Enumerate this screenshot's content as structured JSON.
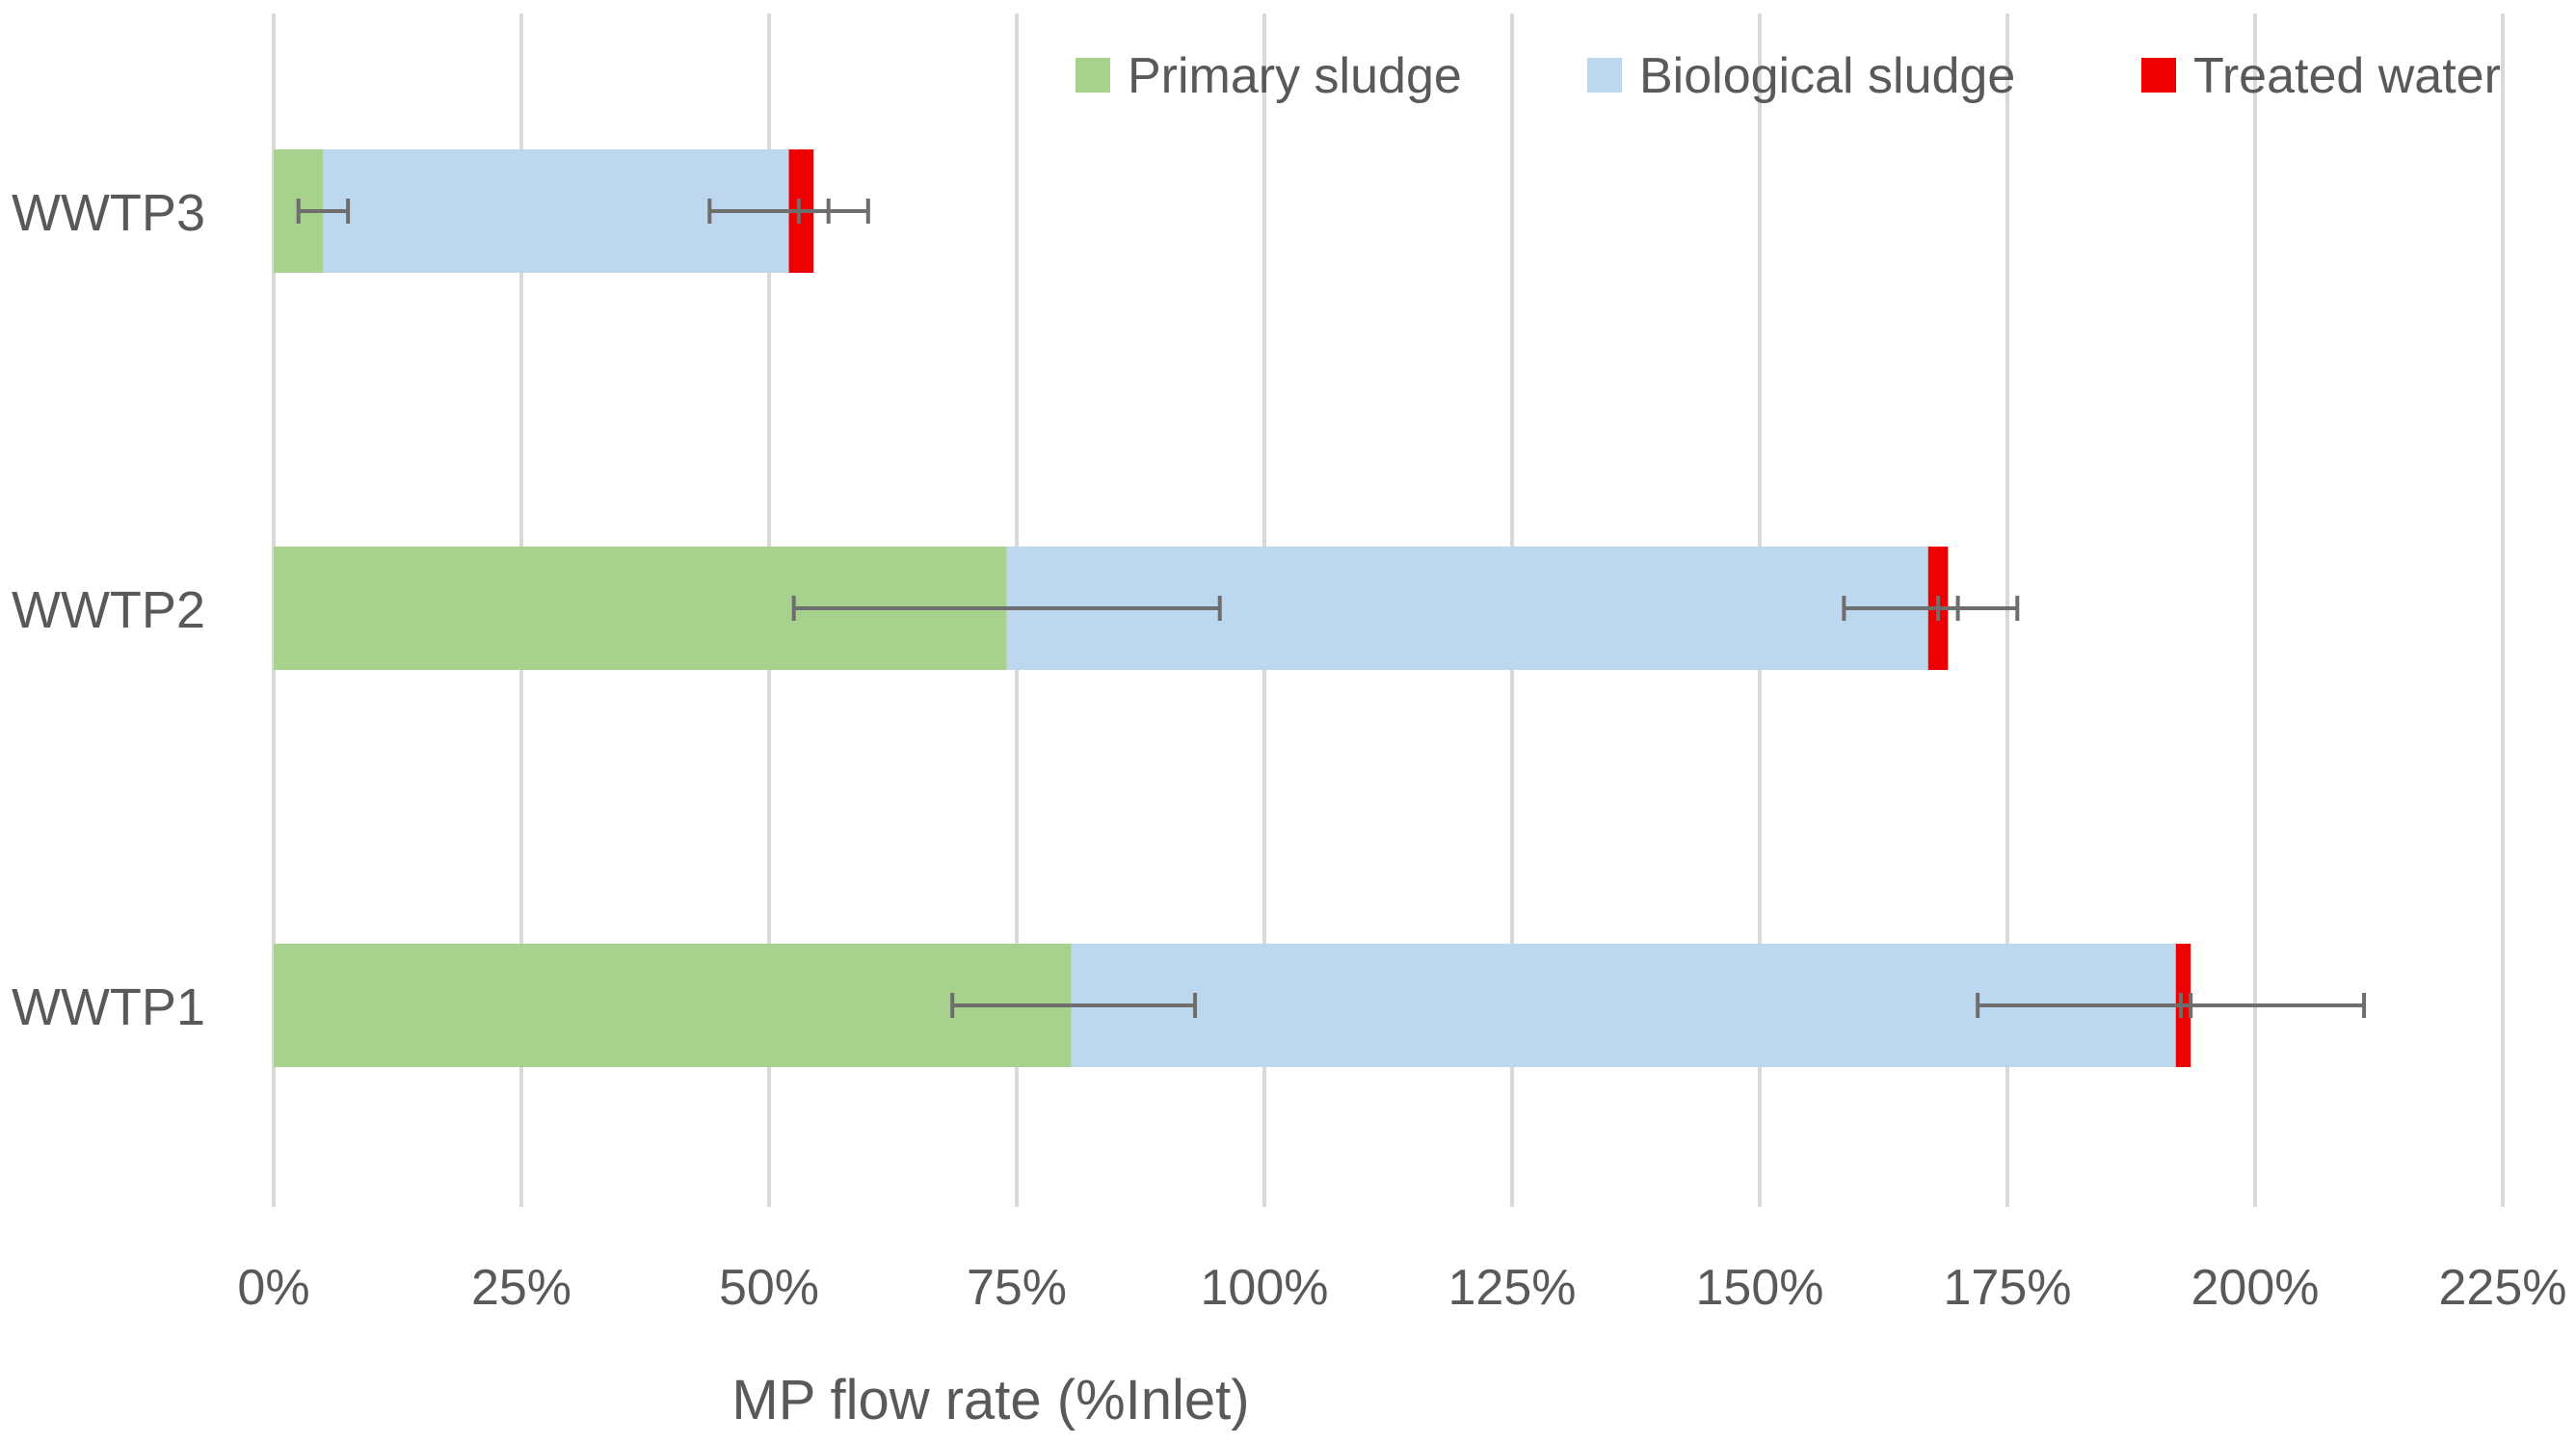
{
  "chart_data": {
    "type": "bar",
    "orientation": "horizontal",
    "stacked": true,
    "title": "",
    "xlabel": "MP flow rate (%Inlet)",
    "ylabel": "",
    "xlim": [
      0,
      225
    ],
    "xticks": [
      0,
      25,
      50,
      75,
      100,
      125,
      150,
      175,
      200,
      225
    ],
    "xtick_labels": [
      "0%",
      "25%",
      "50%",
      "75%",
      "100%",
      "125%",
      "150%",
      "175%",
      "200%",
      "225%"
    ],
    "grid": "vertical",
    "legend_position": "top-right",
    "categories": [
      "WWTP3",
      "WWTP2",
      "WWTP1"
    ],
    "series": [
      {
        "name": "Primary sludge",
        "color": "#a9d18e",
        "values": [
          5,
          74,
          80.5
        ],
        "error_low": [
          2.5,
          52.5,
          68.5
        ],
        "error_high": [
          7.5,
          95.5,
          93
        ]
      },
      {
        "name": "Biological sludge",
        "color": "#bdd7ee",
        "values": [
          47,
          93,
          111.5
        ],
        "error_low": [
          44,
          158.5,
          172
        ],
        "error_high": [
          60,
          176,
          211
        ]
      },
      {
        "name": "Treated water",
        "color": "#ee0000",
        "values": [
          2.5,
          2,
          1.5
        ],
        "error_low": [
          53,
          168,
          192.5
        ],
        "error_high": [
          56,
          170,
          193.5
        ]
      }
    ]
  }
}
